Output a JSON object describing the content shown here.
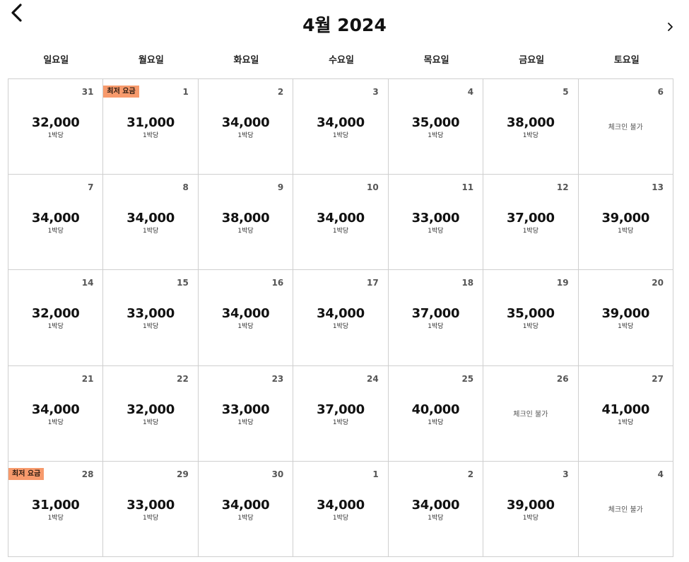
{
  "header": {
    "title": "4월 2024",
    "back_icon": "chevron-left-icon",
    "next_icon": "chevron-right-icon"
  },
  "weekdays": [
    "일요일",
    "월요일",
    "화요일",
    "수요일",
    "목요일",
    "금요일",
    "토요일"
  ],
  "labels": {
    "per_night": "1박당",
    "unavailable": "체크인 불가",
    "lowest_badge": "최저 요금"
  },
  "colors": {
    "badge_bg": "#f79a6c"
  },
  "days": [
    {
      "day": "31",
      "price": "32,000",
      "lowest": false,
      "available": true
    },
    {
      "day": "1",
      "price": "31,000",
      "lowest": true,
      "available": true
    },
    {
      "day": "2",
      "price": "34,000",
      "lowest": false,
      "available": true
    },
    {
      "day": "3",
      "price": "34,000",
      "lowest": false,
      "available": true
    },
    {
      "day": "4",
      "price": "35,000",
      "lowest": false,
      "available": true
    },
    {
      "day": "5",
      "price": "38,000",
      "lowest": false,
      "available": true
    },
    {
      "day": "6",
      "price": "",
      "lowest": false,
      "available": false
    },
    {
      "day": "7",
      "price": "34,000",
      "lowest": false,
      "available": true
    },
    {
      "day": "8",
      "price": "34,000",
      "lowest": false,
      "available": true
    },
    {
      "day": "9",
      "price": "38,000",
      "lowest": false,
      "available": true
    },
    {
      "day": "10",
      "price": "34,000",
      "lowest": false,
      "available": true
    },
    {
      "day": "11",
      "price": "33,000",
      "lowest": false,
      "available": true
    },
    {
      "day": "12",
      "price": "37,000",
      "lowest": false,
      "available": true
    },
    {
      "day": "13",
      "price": "39,000",
      "lowest": false,
      "available": true
    },
    {
      "day": "14",
      "price": "32,000",
      "lowest": false,
      "available": true
    },
    {
      "day": "15",
      "price": "33,000",
      "lowest": false,
      "available": true
    },
    {
      "day": "16",
      "price": "34,000",
      "lowest": false,
      "available": true
    },
    {
      "day": "17",
      "price": "34,000",
      "lowest": false,
      "available": true
    },
    {
      "day": "18",
      "price": "37,000",
      "lowest": false,
      "available": true
    },
    {
      "day": "19",
      "price": "35,000",
      "lowest": false,
      "available": true
    },
    {
      "day": "20",
      "price": "39,000",
      "lowest": false,
      "available": true
    },
    {
      "day": "21",
      "price": "34,000",
      "lowest": false,
      "available": true
    },
    {
      "day": "22",
      "price": "32,000",
      "lowest": false,
      "available": true
    },
    {
      "day": "23",
      "price": "33,000",
      "lowest": false,
      "available": true
    },
    {
      "day": "24",
      "price": "37,000",
      "lowest": false,
      "available": true
    },
    {
      "day": "25",
      "price": "40,000",
      "lowest": false,
      "available": true
    },
    {
      "day": "26",
      "price": "",
      "lowest": false,
      "available": false
    },
    {
      "day": "27",
      "price": "41,000",
      "lowest": false,
      "available": true
    },
    {
      "day": "28",
      "price": "31,000",
      "lowest": true,
      "available": true
    },
    {
      "day": "29",
      "price": "33,000",
      "lowest": false,
      "available": true
    },
    {
      "day": "30",
      "price": "34,000",
      "lowest": false,
      "available": true
    },
    {
      "day": "1",
      "price": "34,000",
      "lowest": false,
      "available": true
    },
    {
      "day": "2",
      "price": "34,000",
      "lowest": false,
      "available": true
    },
    {
      "day": "3",
      "price": "39,000",
      "lowest": false,
      "available": true
    },
    {
      "day": "4",
      "price": "",
      "lowest": false,
      "available": false
    }
  ]
}
